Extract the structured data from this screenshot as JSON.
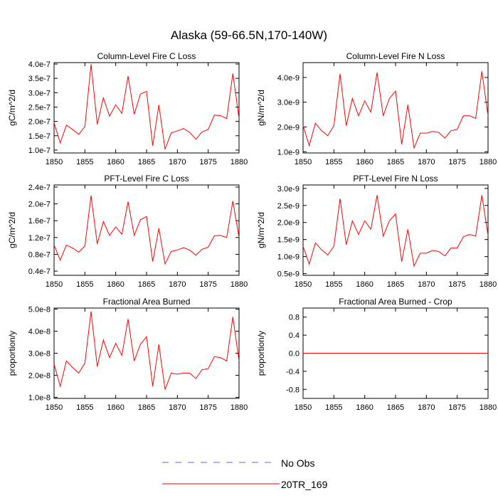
{
  "title": "Alaska (59-66.5N,170-140W)",
  "legend": [
    {
      "label": "No Obs",
      "color": "#6666cc",
      "dashed": true
    },
    {
      "label": "20TR_169",
      "color": "#ff0000",
      "dashed": false
    }
  ],
  "chart_data": [
    {
      "type": "line",
      "title": "Column-Level Fire C Loss",
      "ylabel": "gC/m^2/d",
      "xlabel": "",
      "xlim": [
        1850,
        1880
      ],
      "ylim": [
        9e-08,
        4.05e-07
      ],
      "xticks": [
        1850,
        1855,
        1860,
        1865,
        1870,
        1875,
        1880
      ],
      "xtick_labels": [
        "1850",
        "1855",
        "1860",
        "1865",
        "1870",
        "1875",
        "1880"
      ],
      "yticks": [
        1e-07,
        1.5e-07,
        2e-07,
        2.5e-07,
        3e-07,
        3.5e-07,
        4e-07
      ],
      "ytick_labels": [
        "1.0e-7",
        "1.5e-7",
        "2.0e-7",
        "2.5e-7",
        "3.0e-7",
        "3.5e-7",
        "4.0e-7"
      ],
      "series": [
        {
          "name": "20TR_169",
          "color": "#ff0000",
          "x": [
            1850,
            1851,
            1852,
            1853,
            1854,
            1855,
            1856,
            1857,
            1858,
            1859,
            1860,
            1861,
            1862,
            1863,
            1864,
            1865,
            1866,
            1867,
            1868,
            1869,
            1870,
            1871,
            1872,
            1873,
            1874,
            1875,
            1876,
            1877,
            1878,
            1879,
            1880
          ],
          "values": [
            1.95e-07,
            1.25e-07,
            1.87e-07,
            1.72e-07,
            1.55e-07,
            1.82e-07,
            4e-07,
            1.9e-07,
            2.82e-07,
            2.18e-07,
            2.58e-07,
            2.28e-07,
            3.58e-07,
            2.25e-07,
            2.95e-07,
            3.05e-07,
            1.15e-07,
            2.58e-07,
            1.03e-07,
            1.6e-07,
            1.67e-07,
            1.75e-07,
            1.62e-07,
            1.38e-07,
            1.63e-07,
            1.72e-07,
            2.22e-07,
            2.2e-07,
            2.1e-07,
            3.67e-07,
            2.1e-07
          ]
        }
      ]
    },
    {
      "type": "line",
      "title": "Column-Level Fire N Loss",
      "ylabel": "gN/m^2/d",
      "xlabel": "",
      "xlim": [
        1850,
        1880
      ],
      "ylim": [
        9.5e-10,
        4.6e-09
      ],
      "xticks": [
        1850,
        1855,
        1860,
        1865,
        1870,
        1875,
        1880
      ],
      "xtick_labels": [
        "1850",
        "1855",
        "1860",
        "1865",
        "1870",
        "1875",
        "1880"
      ],
      "yticks": [
        1e-09,
        2e-09,
        3e-09,
        4e-09
      ],
      "ytick_labels": [
        "1.0e-9",
        "2.0e-9",
        "3.0e-9",
        "4.0e-9"
      ],
      "series": [
        {
          "name": "20TR_169",
          "color": "#ff0000",
          "x": [
            1850,
            1851,
            1852,
            1853,
            1854,
            1855,
            1856,
            1857,
            1858,
            1859,
            1860,
            1861,
            1862,
            1863,
            1864,
            1865,
            1866,
            1867,
            1868,
            1869,
            1870,
            1871,
            1872,
            1873,
            1874,
            1875,
            1876,
            1877,
            1878,
            1879,
            1880
          ],
          "values": [
            2.05e-09,
            1.25e-09,
            2.15e-09,
            1.85e-09,
            1.65e-09,
            2.05e-09,
            4.15e-09,
            2.05e-09,
            3.15e-09,
            2.45e-09,
            3.05e-09,
            2.6e-09,
            4.2e-09,
            2.45e-09,
            3.15e-09,
            3.45e-09,
            1.3e-09,
            2.9e-09,
            1.15e-09,
            1.75e-09,
            1.75e-09,
            1.82e-09,
            1.78e-09,
            1.55e-09,
            1.85e-09,
            1.9e-09,
            2.45e-09,
            2.45e-09,
            2.35e-09,
            4.25e-09,
            2.45e-09
          ]
        }
      ]
    },
    {
      "type": "line",
      "title": "PFT-Level Fire C Loss",
      "ylabel": "gC/m^2/d",
      "xlabel": "",
      "xlim": [
        1850,
        1880
      ],
      "ylim": [
        3e-08,
        2.45e-07
      ],
      "xticks": [
        1850,
        1855,
        1860,
        1865,
        1870,
        1875,
        1880
      ],
      "xtick_labels": [
        "1850",
        "1855",
        "1860",
        "1865",
        "1870",
        "1875",
        "1880"
      ],
      "yticks": [
        4e-08,
        8e-08,
        1.2e-07,
        1.6e-07,
        2e-07,
        2.4e-07
      ],
      "ytick_labels": [
        "0.4e-7",
        "0.8e-7",
        "1.2e-7",
        "1.6e-7",
        "2.0e-7",
        "2.4e-7"
      ],
      "series": [
        {
          "name": "20TR_169",
          "color": "#ff0000",
          "x": [
            1850,
            1851,
            1852,
            1853,
            1854,
            1855,
            1856,
            1857,
            1858,
            1859,
            1860,
            1861,
            1862,
            1863,
            1864,
            1865,
            1866,
            1867,
            1868,
            1869,
            1870,
            1871,
            1872,
            1873,
            1874,
            1875,
            1876,
            1877,
            1878,
            1879,
            1880
          ],
          "values": [
            1.02e-07,
            6.6e-08,
            1.02e-07,
            9.5e-08,
            8.5e-08,
            1e-07,
            2.2e-07,
            1.05e-07,
            1.58e-07,
            1.25e-07,
            1.45e-07,
            1.28e-07,
            2.05e-07,
            1.25e-07,
            1.62e-07,
            1.7e-07,
            6.3e-08,
            1.42e-07,
            5.7e-08,
            8.7e-08,
            9e-08,
            9.6e-08,
            9e-08,
            7.8e-08,
            9.2e-08,
            9.7e-08,
            1.24e-07,
            1.25e-07,
            1.2e-07,
            2.07e-07,
            1.2e-07
          ]
        }
      ]
    },
    {
      "type": "line",
      "title": "PFT-Level Fire N Loss",
      "ylabel": "gN/m^2/d",
      "xlabel": "",
      "xlim": [
        1850,
        1880
      ],
      "ylim": [
        4.5e-10,
        3.1e-09
      ],
      "xticks": [
        1850,
        1855,
        1860,
        1865,
        1870,
        1875,
        1880
      ],
      "xtick_labels": [
        "1850",
        "1855",
        "1860",
        "1865",
        "1870",
        "1875",
        "1880"
      ],
      "yticks": [
        5e-10,
        1e-09,
        1.5e-09,
        2e-09,
        2.5e-09,
        3e-09
      ],
      "ytick_labels": [
        "0.5e-9",
        "1.0e-9",
        "1.5e-9",
        "2.0e-9",
        "2.5e-9",
        "3.0e-9"
      ],
      "series": [
        {
          "name": "20TR_169",
          "color": "#ff0000",
          "x": [
            1850,
            1851,
            1852,
            1853,
            1854,
            1855,
            1856,
            1857,
            1858,
            1859,
            1860,
            1861,
            1862,
            1863,
            1864,
            1865,
            1866,
            1867,
            1868,
            1869,
            1870,
            1871,
            1872,
            1873,
            1874,
            1875,
            1876,
            1877,
            1878,
            1879,
            1880
          ],
          "values": [
            1.3e-09,
            7.8e-10,
            1.4e-09,
            1.2e-09,
            1.05e-09,
            1.3e-09,
            2.7e-09,
            1.35e-09,
            2.05e-09,
            1.65e-09,
            2.05e-09,
            1.8e-09,
            2.8e-09,
            1.6e-09,
            2.05e-09,
            2.25e-09,
            8.5e-10,
            1.8e-09,
            7.2e-10,
            1.1e-09,
            1.1e-09,
            1.18e-09,
            1.15e-09,
            1.02e-09,
            1.25e-09,
            1.25e-09,
            1.58e-09,
            1.65e-09,
            1.6e-09,
            2.8e-09,
            1.62e-09
          ]
        }
      ]
    },
    {
      "type": "line",
      "title": "Fractional Area Burned",
      "ylabel": "proportion/y",
      "xlabel": "",
      "xlim": [
        1850,
        1880
      ],
      "ylim": [
        9.5e-09,
        5.05e-08
      ],
      "xticks": [
        1850,
        1855,
        1860,
        1865,
        1870,
        1875,
        1880
      ],
      "xtick_labels": [
        "1850",
        "1855",
        "1860",
        "1865",
        "1870",
        "1875",
        "1880"
      ],
      "yticks": [
        1e-08,
        2e-08,
        3e-08,
        4e-08,
        5e-08
      ],
      "ytick_labels": [
        "1.0e-8",
        "2.0e-8",
        "3.0e-8",
        "4.0e-8",
        "5.0e-8"
      ],
      "series": [
        {
          "name": "20TR_169",
          "color": "#ff0000",
          "x": [
            1850,
            1851,
            1852,
            1853,
            1854,
            1855,
            1856,
            1857,
            1858,
            1859,
            1860,
            1861,
            1862,
            1863,
            1864,
            1865,
            1866,
            1867,
            1868,
            1869,
            1870,
            1871,
            1872,
            1873,
            1874,
            1875,
            1876,
            1877,
            1878,
            1879,
            1880
          ],
          "values": [
            2.5e-08,
            1.5e-08,
            2.65e-08,
            2.35e-08,
            2.1e-08,
            2.55e-08,
            4.9e-08,
            2.4e-08,
            3.6e-08,
            2.8e-08,
            3.45e-08,
            2.9e-08,
            4.55e-08,
            2.65e-08,
            3.4e-08,
            3.75e-08,
            1.5e-08,
            3.4e-08,
            1.35e-08,
            2.1e-08,
            2.05e-08,
            2.1e-08,
            2.1e-08,
            1.85e-08,
            2.25e-08,
            2.3e-08,
            2.85e-08,
            2.8e-08,
            2.65e-08,
            4.65e-08,
            2.65e-08
          ]
        }
      ]
    },
    {
      "type": "line",
      "title": "Fractional Area Burned - Crop",
      "ylabel": "proportion/y",
      "xlabel": "",
      "xlim": [
        1850,
        1880
      ],
      "ylim": [
        -1.0,
        1.0
      ],
      "xticks": [
        1850,
        1855,
        1860,
        1865,
        1870,
        1875,
        1880
      ],
      "xtick_labels": [
        "1850",
        "1855",
        "1860",
        "1865",
        "1870",
        "1875",
        "1880"
      ],
      "yticks": [
        -0.8,
        -0.4,
        0.0,
        0.4,
        0.8
      ],
      "ytick_labels": [
        "-0.8",
        "-0.4",
        "0.0",
        "0.4",
        "0.8"
      ],
      "series": [
        {
          "name": "20TR_169",
          "color": "#ff0000",
          "x": [
            1850,
            1880
          ],
          "values": [
            0.0,
            0.0
          ]
        }
      ]
    }
  ]
}
